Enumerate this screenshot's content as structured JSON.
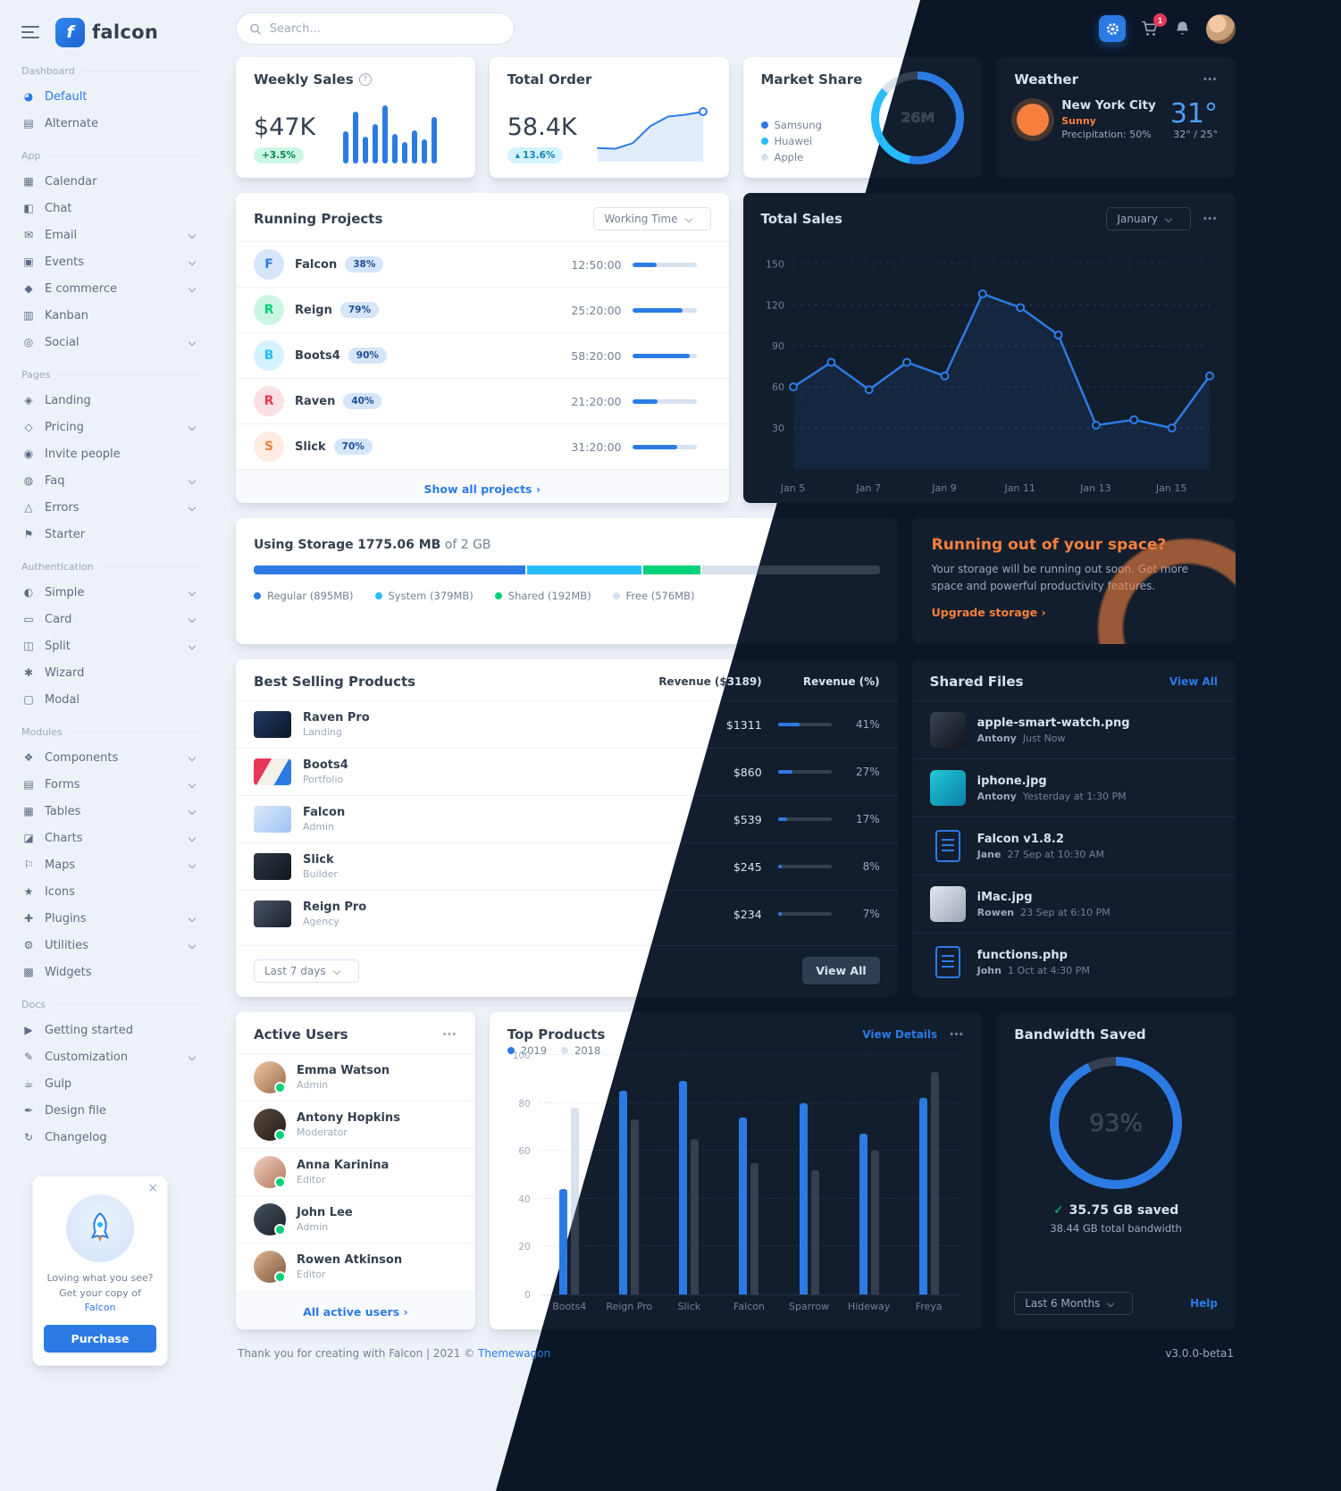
{
  "brand": {
    "name": "falcon",
    "mark": "f"
  },
  "icons": {
    "info": "?",
    "more": "•••",
    "close": "×",
    "caret_up": "▴",
    "check": "✓"
  },
  "topbar": {
    "search_placeholder": "Search...",
    "cart_badge": "1"
  },
  "sidebar": {
    "sections": [
      {
        "label": "Dashboard",
        "items": [
          {
            "label": "Default",
            "glyph": "◕",
            "active": true
          },
          {
            "label": "Alternate",
            "glyph": "▤"
          }
        ]
      },
      {
        "label": "App",
        "items": [
          {
            "label": "Calendar",
            "glyph": "▦"
          },
          {
            "label": "Chat",
            "glyph": "◧"
          },
          {
            "label": "Email",
            "glyph": "✉",
            "expandable": true
          },
          {
            "label": "Events",
            "glyph": "▣",
            "expandable": true
          },
          {
            "label": "E commerce",
            "glyph": "◆",
            "expandable": true
          },
          {
            "label": "Kanban",
            "glyph": "▥"
          },
          {
            "label": "Social",
            "glyph": "◎",
            "expandable": true
          }
        ]
      },
      {
        "label": "Pages",
        "items": [
          {
            "label": "Landing",
            "glyph": "◈"
          },
          {
            "label": "Pricing",
            "glyph": "◇",
            "expandable": true
          },
          {
            "label": "Invite people",
            "glyph": "◉"
          },
          {
            "label": "Faq",
            "glyph": "◍",
            "expandable": true
          },
          {
            "label": "Errors",
            "glyph": "△",
            "expandable": true
          },
          {
            "label": "Starter",
            "glyph": "⚑"
          }
        ]
      },
      {
        "label": "Authentication",
        "items": [
          {
            "label": "Simple",
            "glyph": "◐",
            "expandable": true
          },
          {
            "label": "Card",
            "glyph": "▭",
            "expandable": true
          },
          {
            "label": "Split",
            "glyph": "◫",
            "expandable": true
          },
          {
            "label": "Wizard",
            "glyph": "✱"
          },
          {
            "label": "Modal",
            "glyph": "▢"
          }
        ]
      },
      {
        "label": "Modules",
        "items": [
          {
            "label": "Components",
            "glyph": "❖",
            "expandable": true
          },
          {
            "label": "Forms",
            "glyph": "▤",
            "expandable": true
          },
          {
            "label": "Tables",
            "glyph": "▦",
            "expandable": true
          },
          {
            "label": "Charts",
            "glyph": "◪",
            "expandable": true
          },
          {
            "label": "Maps",
            "glyph": "⚐",
            "expandable": true
          },
          {
            "label": "Icons",
            "glyph": "★"
          },
          {
            "label": "Plugins",
            "glyph": "✚",
            "expandable": true
          },
          {
            "label": "Utilities",
            "glyph": "⚙",
            "expandable": true
          },
          {
            "label": "Widgets",
            "glyph": "▩"
          }
        ]
      },
      {
        "label": "Docs",
        "items": [
          {
            "label": "Getting started",
            "glyph": "▶"
          },
          {
            "label": "Customization",
            "glyph": "✎",
            "expandable": true
          },
          {
            "label": "Gulp",
            "glyph": "☕"
          },
          {
            "label": "Design file",
            "glyph": "✒"
          },
          {
            "label": "Changelog",
            "glyph": "↻"
          }
        ]
      }
    ],
    "promo": {
      "line1": "Loving what you see?",
      "line2_pre": "Get your copy of ",
      "line2_link": "Falcon",
      "button": "Purchase"
    }
  },
  "cards": {
    "weekly_sales": {
      "title": "Weekly Sales",
      "value": "$47K",
      "badge": "+3.5%",
      "values": [
        48,
        78,
        40,
        60,
        88,
        44,
        32,
        50,
        36,
        70
      ]
    },
    "total_order": {
      "title": "Total Order",
      "value": "58.4K",
      "badge": "13.6%",
      "values": [
        22,
        20,
        35,
        80,
        105,
        110,
        118
      ]
    },
    "market_share": {
      "title": "Market Share",
      "center": "26M",
      "slices": [
        {
          "label": "Samsung",
          "color": "primary",
          "value": 53
        },
        {
          "label": "Huawei",
          "color": "info",
          "value": 33
        },
        {
          "label": "Apple",
          "color": "gray",
          "value": 14
        }
      ]
    },
    "weather": {
      "title": "Weather",
      "city": "New York City",
      "condition": "Sunny",
      "precipitation": "Precipitation: 50%",
      "temp": "31°",
      "range": "32° / 25°"
    },
    "running_projects": {
      "title": "Running Projects",
      "filter": "Working Time",
      "footer_link": "Show all projects ›",
      "projects": [
        {
          "initial": "F",
          "name": "Falcon",
          "badge": "38%",
          "time": "12:50:00",
          "progress": 38,
          "color": "primary"
        },
        {
          "initial": "R",
          "name": "Reign",
          "badge": "79%",
          "time": "25:20:00",
          "progress": 79,
          "color": "success"
        },
        {
          "initial": "B",
          "name": "Boots4",
          "badge": "90%",
          "time": "58:20:00",
          "progress": 90,
          "color": "info"
        },
        {
          "initial": "R",
          "name": "Raven",
          "badge": "40%",
          "time": "21:20:00",
          "progress": 40,
          "color": "danger"
        },
        {
          "initial": "S",
          "name": "Slick",
          "badge": "70%",
          "time": "31:20:00",
          "progress": 70,
          "color": "warning"
        }
      ]
    },
    "total_sales": {
      "title": "Total Sales",
      "filter": "January",
      "yticks": [
        30,
        60,
        90,
        120,
        150
      ],
      "x_labels": [
        "Jan 5",
        "Jan 7",
        "Jan 9",
        "Jan 11",
        "Jan 13",
        "Jan 15"
      ],
      "values": [
        60,
        78,
        58,
        78,
        68,
        128,
        118,
        98,
        32,
        36,
        30,
        68
      ]
    },
    "storage": {
      "title_pre": "Using Storage",
      "used": "1775.06 MB",
      "of_total": "of 2 GB",
      "total_mb": 2048,
      "segments": [
        {
          "label": "Regular (895MB)",
          "mb": 895,
          "color": "primary"
        },
        {
          "label": "System (379MB)",
          "mb": 379,
          "color": "info"
        },
        {
          "label": "Shared (192MB)",
          "mb": 192,
          "color": "success"
        },
        {
          "label": "Free (576MB)",
          "mb": 576,
          "color": "gray"
        }
      ]
    },
    "space": {
      "title": "Running out of your space?",
      "body": "Your storage will be running out soon. Get more space and powerful productivity features.",
      "link": "Upgrade storage ›"
    },
    "best_selling": {
      "title": "Best Selling Products",
      "col_revenue": "Revenue ($3189)",
      "col_pct": "Revenue (%)",
      "filter": "Last 7 days",
      "view_all": "View All",
      "products": [
        {
          "name": "Raven Pro",
          "category": "Landing",
          "revenue": "$1311",
          "pct": 41,
          "pct_label": "41%",
          "thumb": "raven-pro"
        },
        {
          "name": "Boots4",
          "category": "Portfolio",
          "revenue": "$860",
          "pct": 27,
          "pct_label": "27%",
          "thumb": "boots4"
        },
        {
          "name": "Falcon",
          "category": "Admin",
          "revenue": "$539",
          "pct": 17,
          "pct_label": "17%",
          "thumb": "falcon-admin"
        },
        {
          "name": "Slick",
          "category": "Builder",
          "revenue": "$245",
          "pct": 8,
          "pct_label": "8%",
          "thumb": "slick"
        },
        {
          "name": "Reign Pro",
          "category": "Agency",
          "revenue": "$234",
          "pct": 7,
          "pct_label": "7%",
          "thumb": "reign-pro"
        }
      ]
    },
    "shared_files": {
      "title": "Shared Files",
      "view_all": "View All",
      "files": [
        {
          "name": "apple-smart-watch.png",
          "author": "Antony",
          "time": "Just Now",
          "thumb": "watch"
        },
        {
          "name": "iphone.jpg",
          "author": "Antony",
          "time": "Yesterday at 1:30 PM",
          "thumb": "iphone"
        },
        {
          "name": "Falcon v1.8.2",
          "author": "Jane",
          "time": "27 Sep at 10:30 AM",
          "thumb": "file-doc"
        },
        {
          "name": "iMac.jpg",
          "author": "Rowen",
          "time": "23 Sep at 6:10 PM",
          "thumb": "imac"
        },
        {
          "name": "functions.php",
          "author": "John",
          "time": "1 Oct at 4:30 PM",
          "thumb": "file-doc"
        }
      ]
    },
    "active_users": {
      "title": "Active Users",
      "footer_link": "All active users ›",
      "users": [
        {
          "name": "Emma Watson",
          "role": "Admin"
        },
        {
          "name": "Antony Hopkins",
          "role": "Moderator"
        },
        {
          "name": "Anna Karinina",
          "role": "Editor"
        },
        {
          "name": "John Lee",
          "role": "Admin"
        },
        {
          "name": "Rowen Atkinson",
          "role": "Editor"
        }
      ]
    },
    "top_products": {
      "title": "Top Products",
      "details_link": "View Details",
      "yticks": [
        0,
        20,
        40,
        60,
        80,
        100
      ],
      "categories": [
        "Boots4",
        "Reign Pro",
        "Slick",
        "Falcon",
        "Sparrow",
        "Hideway",
        "Freya"
      ],
      "series": [
        {
          "name": "2019",
          "color": "primary",
          "values": [
            44,
            85,
            89,
            74,
            80,
            67,
            82
          ]
        },
        {
          "name": "2018",
          "color": "gray",
          "values": [
            78,
            73,
            65,
            55,
            52,
            60,
            93
          ]
        }
      ]
    },
    "bandwidth": {
      "title": "Bandwidth Saved",
      "pct": 93,
      "pct_label": "93%",
      "saved": "35.75 GB saved",
      "total": "38.44 GB total bandwidth",
      "filter": "Last 6 Months",
      "help": "Help"
    }
  },
  "footer": {
    "text_pre": "Thank you for creating with Falcon | 2021 © ",
    "text_link": "Themewagon",
    "version": "v3.0.0-beta1"
  }
}
